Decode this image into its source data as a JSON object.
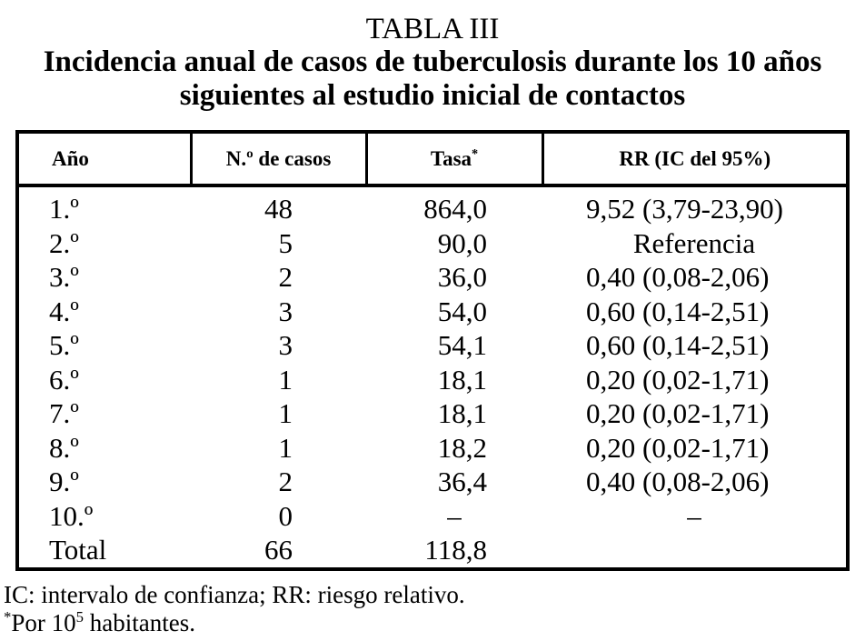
{
  "title": "TABLA III",
  "subtitle_lines": [
    "Incidencia anual de casos de tuberculosis durante los 10 años",
    "siguientes al estudio inicial de contactos"
  ],
  "table": {
    "header": {
      "year": "Año",
      "cases": "N.º de casos",
      "rate": "Tasa",
      "rate_marker": "*",
      "rr": "RR (IC del 95%)"
    },
    "rows": [
      {
        "year": "1.º",
        "cases": "48",
        "rate": "864,0",
        "rr": "9,52 (3,79-23,90)"
      },
      {
        "year": "2.º",
        "cases": "5",
        "rate": "90,0",
        "rr": "Referencia"
      },
      {
        "year": "3.º",
        "cases": "2",
        "rate": "36,0",
        "rr": "0,40 (0,08-2,06)"
      },
      {
        "year": "4.º",
        "cases": "3",
        "rate": "54,0",
        "rr": "0,60 (0,14-2,51)"
      },
      {
        "year": "5.º",
        "cases": "3",
        "rate": "54,1",
        "rr": "0,60 (0,14-2,51)"
      },
      {
        "year": "6.º",
        "cases": "1",
        "rate": "18,1",
        "rr": "0,20 (0,02-1,71)"
      },
      {
        "year": "7.º",
        "cases": "1",
        "rate": "18,1",
        "rr": "0,20 (0,02-1,71)"
      },
      {
        "year": "8.º",
        "cases": "1",
        "rate": "18,2",
        "rr": "0,20 (0,02-1,71)"
      },
      {
        "year": "9.º",
        "cases": "2",
        "rate": "36,4",
        "rr": "0,40 (0,08-2,06)"
      },
      {
        "year": "10.º",
        "cases": "0",
        "rate": "–",
        "rr": "–"
      },
      {
        "year": "Total",
        "cases": "66",
        "rate": "118,8",
        "rr": ""
      }
    ]
  },
  "footnotes": {
    "abbreviations": "IC: intervalo de confianza; RR: riesgo relativo.",
    "rate_note": {
      "marker": "*",
      "pre": "Por 10",
      "exp": "5",
      "post": " habitantes."
    }
  },
  "colors": {
    "text": "#000000",
    "background": "#ffffff",
    "border": "#000000"
  }
}
